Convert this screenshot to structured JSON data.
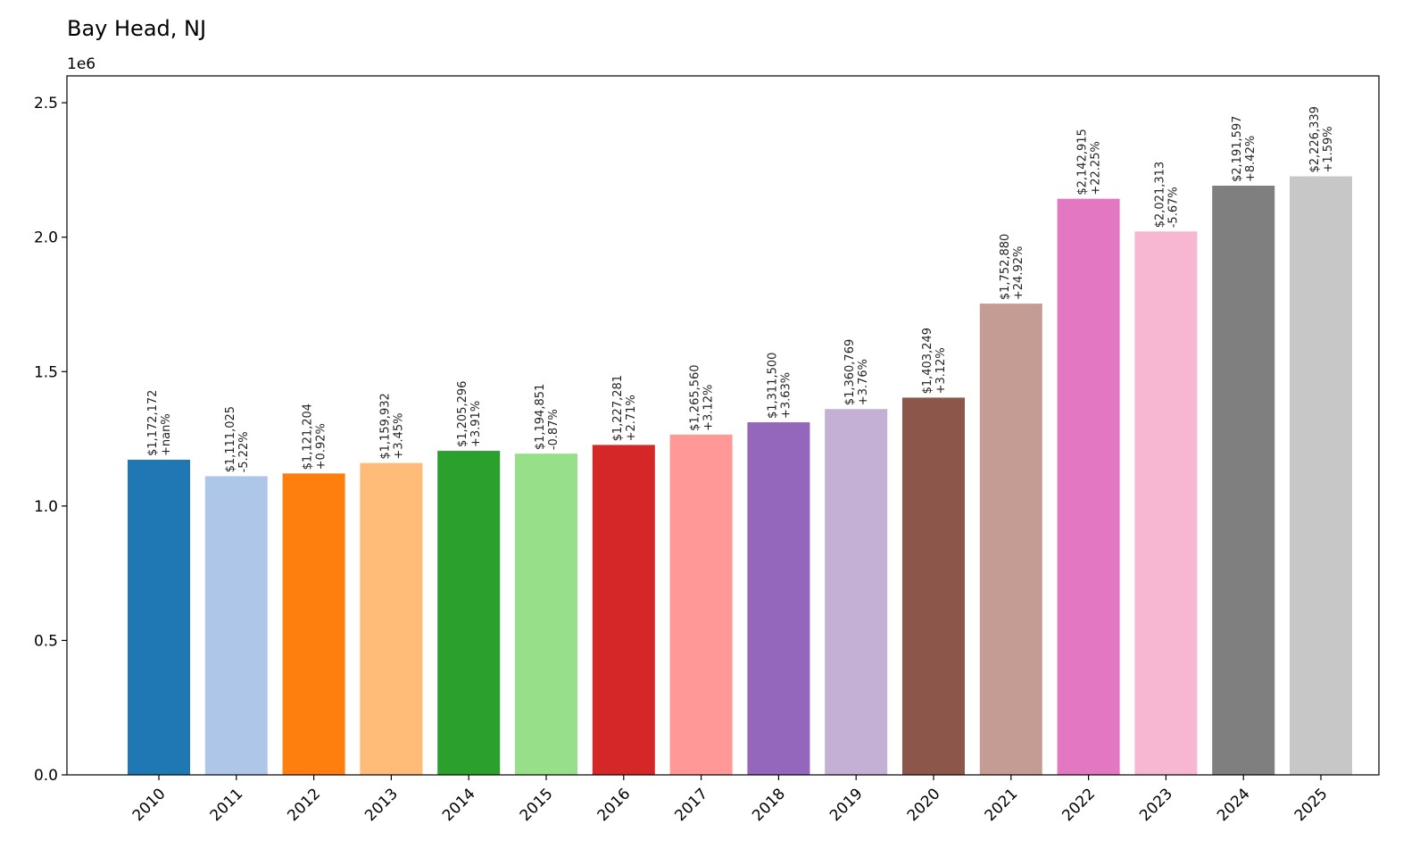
{
  "chart_data": {
    "type": "bar",
    "title": "Bay Head, NJ",
    "xlabel": "",
    "ylabel": "",
    "y_offset_label": "1e6",
    "ylim": [
      0,
      2.6
    ],
    "yticks": [
      "0.0",
      "0.5",
      "1.0",
      "1.5",
      "2.0",
      "2.5"
    ],
    "grid": false,
    "categories": [
      "2010",
      "2011",
      "2012",
      "2013",
      "2014",
      "2015",
      "2016",
      "2017",
      "2018",
      "2019",
      "2020",
      "2021",
      "2022",
      "2023",
      "2024",
      "2025"
    ],
    "values": [
      1172172,
      1111025,
      1121204,
      1159932,
      1205296,
      1194851,
      1227281,
      1265560,
      1311500,
      1360769,
      1403249,
      1752880,
      2142915,
      2021313,
      2191597,
      2226339
    ],
    "value_labels": [
      "$1,172,172",
      "$1,111,025",
      "$1,121,204",
      "$1,159,932",
      "$1,205,296",
      "$1,194,851",
      "$1,227,281",
      "$1,265,560",
      "$1,311,500",
      "$1,360,769",
      "$1,403,249",
      "$1,752,880",
      "$2,142,915",
      "$2,021,313",
      "$2,191,597",
      "$2,226,339"
    ],
    "change_labels": [
      "+nan%",
      "-5.22%",
      "+0.92%",
      "+3.45%",
      "+3.91%",
      "-0.87%",
      "+2.71%",
      "+3.12%",
      "+3.63%",
      "+3.76%",
      "+3.12%",
      "+24.92%",
      "+22.25%",
      "-5.67%",
      "+8.42%",
      "+1.59%"
    ],
    "colors": [
      "#1f77b4",
      "#aec7e8",
      "#ff7f0e",
      "#ffbb78",
      "#2ca02c",
      "#98df8a",
      "#d62728",
      "#ff9896",
      "#9467bd",
      "#c5b0d5",
      "#8c564b",
      "#c49c94",
      "#e377c2",
      "#f7b6d2",
      "#7f7f7f",
      "#c7c7c7"
    ]
  }
}
